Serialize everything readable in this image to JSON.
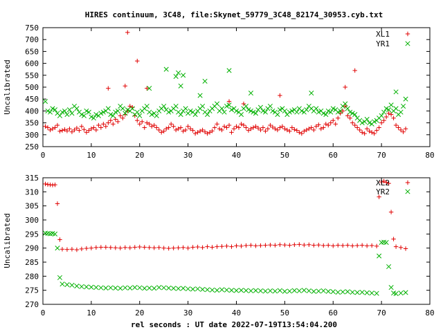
{
  "title": "HIRES continuum, 3C48, file:Skynet_59779_3C48_82174_30953.cyb.txt",
  "xlabel": "rel seconds : UT date 2022-07-19T13:54:04.200",
  "colors": {
    "red": "#e00000",
    "green": "#00b000"
  },
  "chart_data": [
    {
      "type": "scatter",
      "ylabel": "Uncalibrated",
      "xlim": [
        0,
        80
      ],
      "ylim": [
        250,
        750
      ],
      "xticks": [
        0,
        10,
        20,
        30,
        40,
        50,
        60,
        70,
        80
      ],
      "yticks": [
        250,
        300,
        350,
        400,
        450,
        500,
        550,
        600,
        650,
        700,
        750
      ],
      "grid": false,
      "legend_position": "top-right",
      "series": [
        {
          "name": "XL1",
          "marker": "plus",
          "color": "#e00000",
          "x": [
            0.5,
            1,
            1.5,
            2,
            2.5,
            3,
            3.5,
            4,
            4.5,
            5,
            5.5,
            6,
            6.5,
            7,
            7.5,
            8,
            8.5,
            9,
            9.5,
            10,
            10.5,
            11,
            11.5,
            12,
            12.5,
            13,
            13.5,
            14,
            14.5,
            15,
            15.5,
            16,
            16.5,
            17,
            17.5,
            18,
            18.5,
            19,
            19.5,
            20,
            20.5,
            21,
            21.5,
            22,
            22.5,
            23,
            23.5,
            24,
            24.5,
            25,
            25.5,
            26,
            26.5,
            27,
            27.5,
            28,
            28.5,
            29,
            29.5,
            30,
            30.5,
            31,
            31.5,
            32,
            32.5,
            33,
            33.5,
            34,
            34.5,
            35,
            35.5,
            36,
            36.5,
            37,
            37.5,
            38,
            38.5,
            39,
            39.5,
            40,
            40.5,
            41,
            41.5,
            42,
            42.5,
            43,
            43.5,
            44,
            44.5,
            45,
            45.5,
            46,
            46.5,
            47,
            47.5,
            48,
            48.5,
            49,
            49.5,
            50,
            50.5,
            51,
            51.5,
            52,
            52.5,
            53,
            53.5,
            54,
            54.5,
            55,
            55.5,
            56,
            56.5,
            57,
            57.5,
            58,
            58.5,
            59,
            59.5,
            60,
            60.5,
            61,
            61.5,
            62,
            62.5,
            63,
            63.5,
            64,
            64.5,
            65,
            65.5,
            66,
            66.5,
            67,
            67.5,
            68,
            68.5,
            69,
            69.5,
            70,
            70.5,
            71,
            71.5,
            72,
            72.5,
            73,
            73.5,
            74,
            74.5,
            75
          ],
          "y": [
            335,
            330,
            320,
            325,
            330,
            340,
            315,
            318,
            322,
            316,
            325,
            312,
            320,
            328,
            318,
            335,
            322,
            310,
            318,
            325,
            330,
            320,
            340,
            330,
            345,
            335,
            350,
            360,
            345,
            365,
            355,
            380,
            370,
            385,
            400,
            420,
            415,
            380,
            360,
            345,
            355,
            330,
            350,
            345,
            335,
            340,
            330,
            320,
            310,
            315,
            325,
            330,
            345,
            335,
            320,
            325,
            330,
            315,
            320,
            335,
            325,
            318,
            305,
            310,
            315,
            320,
            312,
            305,
            310,
            316,
            330,
            345,
            325,
            320,
            335,
            330,
            340,
            310,
            325,
            335,
            330,
            345,
            340,
            330,
            318,
            325,
            330,
            335,
            328,
            320,
            330,
            315,
            325,
            340,
            332,
            325,
            320,
            330,
            335,
            325,
            320,
            315,
            330,
            322,
            318,
            310,
            305,
            315,
            320,
            325,
            330,
            320,
            335,
            342,
            325,
            330,
            345,
            340,
            350,
            360,
            345,
            370,
            390,
            400,
            420,
            380,
            370,
            350,
            340,
            330,
            320,
            310,
            305,
            325,
            315,
            310,
            305,
            318,
            330,
            350,
            360,
            375,
            390,
            385,
            370,
            340,
            330,
            320,
            312,
            325
          ],
          "outliers_x": [
            17.5,
            19.5,
            64.5,
            62.5,
            13.5,
            17,
            21.5,
            49,
            38.5,
            41.5
          ],
          "outliers_y": [
            730,
            610,
            570,
            500,
            495,
            505,
            495,
            465,
            440,
            430
          ]
        },
        {
          "name": "YR1",
          "marker": "x",
          "color": "#00b000",
          "x": [
            0.5,
            1,
            1.5,
            2,
            2.5,
            3,
            3.5,
            4,
            4.5,
            5,
            5.5,
            6,
            6.5,
            7,
            7.5,
            8,
            8.5,
            9,
            9.5,
            10,
            10.5,
            11,
            11.5,
            12,
            12.5,
            13,
            13.5,
            14,
            14.5,
            15,
            15.5,
            16,
            16.5,
            17,
            17.5,
            18,
            18.5,
            19,
            19.5,
            20,
            20.5,
            21,
            21.5,
            22,
            22.5,
            23,
            23.5,
            24,
            24.5,
            25,
            25.5,
            26,
            26.5,
            27,
            27.5,
            28,
            28.5,
            29,
            29.5,
            30,
            30.5,
            31,
            31.5,
            32,
            32.5,
            33,
            33.5,
            34,
            34.5,
            35,
            35.5,
            36,
            36.5,
            37,
            37.5,
            38,
            38.5,
            39,
            39.5,
            40,
            40.5,
            41,
            41.5,
            42,
            42.5,
            43,
            43.5,
            44,
            44.5,
            45,
            45.5,
            46,
            46.5,
            47,
            47.5,
            48,
            48.5,
            49,
            49.5,
            50,
            50.5,
            51,
            51.5,
            52,
            52.5,
            53,
            53.5,
            54,
            54.5,
            55,
            55.5,
            56,
            56.5,
            57,
            57.5,
            58,
            58.5,
            59,
            59.5,
            60,
            60.5,
            61,
            61.5,
            62,
            62.5,
            63,
            63.5,
            64,
            64.5,
            65,
            65.5,
            66,
            66.5,
            67,
            67.5,
            68,
            68.5,
            69,
            69.5,
            70,
            70.5,
            71,
            71.5,
            72,
            72.5,
            73,
            73.5,
            74,
            74.5,
            75
          ],
          "y": [
            440,
            400,
            395,
            410,
            405,
            390,
            380,
            395,
            400,
            385,
            405,
            390,
            420,
            410,
            395,
            385,
            380,
            400,
            395,
            375,
            370,
            385,
            380,
            390,
            395,
            400,
            410,
            385,
            380,
            395,
            400,
            420,
            410,
            390,
            405,
            400,
            410,
            385,
            395,
            380,
            400,
            410,
            420,
            395,
            385,
            390,
            380,
            400,
            410,
            420,
            405,
            395,
            400,
            410,
            420,
            395,
            385,
            400,
            410,
            390,
            400,
            395,
            385,
            400,
            410,
            420,
            395,
            385,
            400,
            410,
            420,
            430,
            400,
            410,
            395,
            420,
            425,
            405,
            410,
            400,
            395,
            385,
            410,
            420,
            405,
            400,
            395,
            390,
            405,
            415,
            400,
            395,
            410,
            420,
            400,
            395,
            385,
            405,
            410,
            400,
            385,
            395,
            400,
            405,
            395,
            410,
            400,
            395,
            405,
            420,
            410,
            400,
            410,
            395,
            400,
            390,
            385,
            400,
            395,
            410,
            405,
            395,
            400,
            420,
            430,
            410,
            395,
            390,
            385,
            370,
            360,
            350,
            355,
            365,
            350,
            345,
            355,
            360,
            370,
            380,
            395,
            410,
            405,
            425,
            400,
            410,
            385,
            395,
            420,
            450
          ],
          "outliers_x": [
            25.5,
            28,
            27.5,
            29,
            38.5,
            33.5,
            22,
            32.5,
            28.5,
            43,
            55.5,
            73
          ],
          "outliers_y": [
            575,
            560,
            545,
            550,
            570,
            525,
            495,
            465,
            505,
            475,
            475,
            480
          ]
        }
      ]
    },
    {
      "type": "scatter",
      "ylabel": "Uncalibrated",
      "xlim": [
        0,
        80
      ],
      "ylim": [
        270,
        315
      ],
      "xticks": [
        0,
        10,
        20,
        30,
        40,
        50,
        60,
        70,
        80
      ],
      "yticks": [
        270,
        275,
        280,
        285,
        290,
        295,
        300,
        305,
        310,
        315
      ],
      "grid": false,
      "legend_position": "top-right",
      "series": [
        {
          "name": "XL2",
          "marker": "plus",
          "color": "#e00000",
          "x": [
            0.5,
            1,
            1.5,
            2,
            2.5,
            3,
            3.5,
            4,
            5,
            6,
            7,
            8,
            9,
            10,
            11,
            12,
            13,
            14,
            15,
            16,
            17,
            18,
            19,
            20,
            21,
            22,
            23,
            24,
            25,
            26,
            27,
            28,
            29,
            30,
            31,
            32,
            33,
            34,
            35,
            36,
            37,
            38,
            39,
            40,
            41,
            42,
            43,
            44,
            45,
            46,
            47,
            48,
            49,
            50,
            51,
            52,
            53,
            54,
            55,
            56,
            57,
            58,
            59,
            60,
            61,
            62,
            63,
            64,
            65,
            66,
            67,
            68,
            69,
            69.5,
            70,
            70.5,
            71,
            71.5,
            72,
            72.5,
            73,
            74,
            75
          ],
          "y": [
            312.8,
            312.6,
            312.5,
            312.4,
            312.5,
            305.8,
            293,
            289.6,
            289.5,
            289.6,
            289.4,
            289.7,
            289.9,
            290,
            290.2,
            290.3,
            290.3,
            290.2,
            290.1,
            290,
            290.2,
            290.1,
            290.3,
            290.4,
            290.3,
            290.2,
            290.1,
            290.2,
            290,
            289.9,
            290,
            290.1,
            290.2,
            290,
            290.3,
            290.4,
            290.2,
            290.5,
            290.3,
            290.5,
            290.6,
            290.7,
            290.5,
            290.8,
            290.7,
            290.9,
            291,
            290.8,
            290.9,
            291,
            291.1,
            291,
            291.2,
            291.1,
            291,
            291.2,
            291.3,
            291.1,
            291.2,
            291,
            291.1,
            290.9,
            291,
            290.8,
            291,
            290.9,
            291,
            290.8,
            290.9,
            291,
            290.8,
            290.9,
            290.7,
            308.2,
            313.5,
            313.8,
            313.4,
            313,
            302.8,
            293.2,
            290.5,
            290.2,
            289.8
          ]
        },
        {
          "name": "YR2",
          "marker": "x",
          "color": "#00b000",
          "x": [
            0.5,
            1,
            1.5,
            2,
            2.5,
            3,
            3.5,
            4,
            5,
            6,
            7,
            8,
            9,
            10,
            11,
            12,
            13,
            14,
            15,
            16,
            17,
            18,
            19,
            20,
            21,
            22,
            23,
            24,
            25,
            26,
            27,
            28,
            29,
            30,
            31,
            32,
            33,
            34,
            35,
            36,
            37,
            38,
            39,
            40,
            41,
            42,
            43,
            44,
            45,
            46,
            47,
            48,
            49,
            50,
            51,
            52,
            53,
            54,
            55,
            56,
            57,
            58,
            59,
            60,
            61,
            62,
            63,
            64,
            65,
            66,
            67,
            68,
            69,
            69.5,
            70,
            70.5,
            71,
            71.5,
            72,
            72.5,
            73,
            74,
            75
          ],
          "y": [
            295.3,
            295.2,
            295.1,
            295.2,
            295,
            290,
            279.5,
            277.2,
            277,
            276.8,
            276.5,
            276.3,
            276.2,
            276.1,
            276,
            275.9,
            275.8,
            275.9,
            275.8,
            275.7,
            275.9,
            275.8,
            276,
            275.9,
            275.7,
            275.8,
            275.7,
            276,
            275.9,
            275.8,
            275.7,
            275.6,
            275.7,
            275.5,
            275.4,
            275.5,
            275.3,
            275.2,
            275.1,
            275,
            275.2,
            275.1,
            275,
            274.9,
            275,
            274.9,
            274.8,
            274.9,
            274.8,
            274.7,
            274.8,
            274.7,
            274.9,
            274.6,
            274.7,
            274.9,
            274.8,
            275,
            274.8,
            274.6,
            274.7,
            274.8,
            274.6,
            274.5,
            274.3,
            274.4,
            274.5,
            274.3,
            274.2,
            274.3,
            274.1,
            274,
            273.9,
            287.2,
            292,
            292.1,
            292,
            283.4,
            276,
            274,
            273.8,
            274,
            274.2
          ]
        }
      ]
    }
  ]
}
